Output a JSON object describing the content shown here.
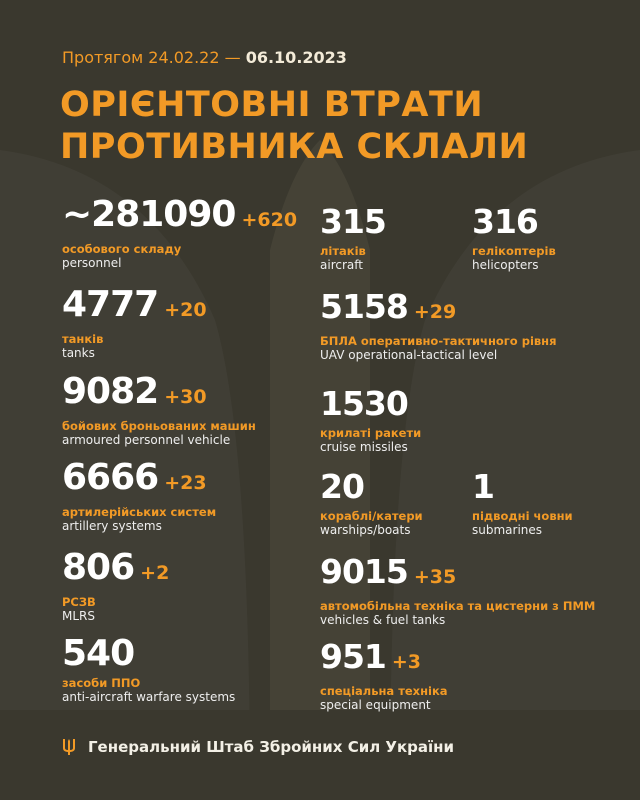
{
  "header": {
    "period_prefix": "Протягом 24.02.22 —",
    "period_date": "06.10.2023",
    "title_line1": "ОРІЄНТОВНІ ВТРАТИ",
    "title_line2": "ПРОТИВНИКА СКЛАЛИ"
  },
  "left": [
    {
      "value": "~281090",
      "increase": "+620",
      "ua": "особового складу",
      "en": "personnel"
    },
    {
      "value": "4777",
      "increase": "+20",
      "ua": "танків",
      "en": "tanks"
    },
    {
      "value": "9082",
      "increase": "+30",
      "ua": "бойових броньованих машин",
      "en": "armoured personnel vehicle"
    },
    {
      "value": "6666",
      "increase": "+23",
      "ua": "артилерійських систем",
      "en": "artillery systems"
    },
    {
      "value": "806",
      "increase": "+2",
      "ua": "РСЗВ",
      "en": "MLRS"
    },
    {
      "value": "540",
      "increase": "",
      "ua": "засоби ППО",
      "en": "anti-aircraft warfare systems"
    }
  ],
  "right": [
    {
      "value": "315",
      "increase": "",
      "ua": "літаків",
      "en": "aircraft"
    },
    {
      "value": "316",
      "increase": "",
      "ua": "гелікоптерів",
      "en": "helicopters"
    },
    {
      "value": "5158",
      "increase": "+29",
      "ua": "БПЛА оперативно-тактичного рівня",
      "en": "UAV operational-tactical level"
    },
    {
      "value": "1530",
      "increase": "",
      "ua": "крилаті ракети",
      "en": "cruise missiles"
    },
    {
      "value": "20",
      "increase": "",
      "ua": "кораблі/катери",
      "en": "warships/boats"
    },
    {
      "value": "1",
      "increase": "",
      "ua": "підводні човни",
      "en": "submarines"
    },
    {
      "value": "9015",
      "increase": "+35",
      "ua": "автомобільна техніка та цистерни з ПММ",
      "en": "vehicles & fuel tanks"
    },
    {
      "value": "951",
      "increase": "+3",
      "ua": "спеціальна техніка",
      "en": "special equipment"
    }
  ],
  "footer": {
    "text": "Генеральний Штаб Збройних Сил України",
    "icon": "trident-icon"
  },
  "colors": {
    "background": "#3a382e",
    "accent": "#f29a26",
    "text": "#ffffff"
  }
}
